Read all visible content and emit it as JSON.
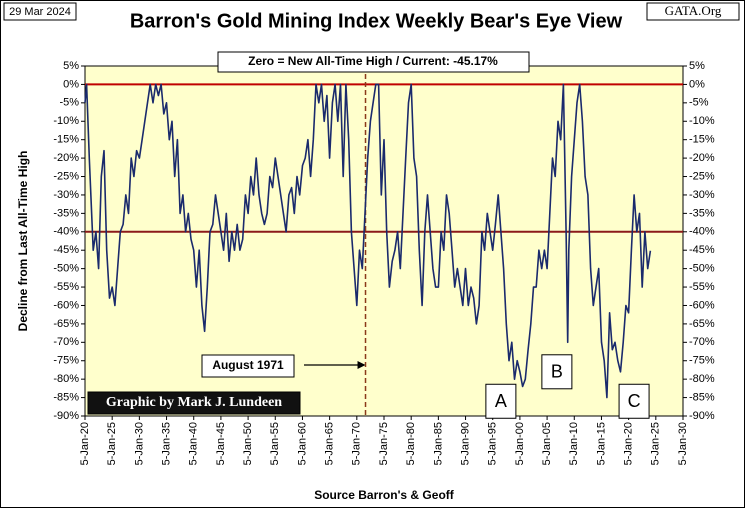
{
  "chart_data": {
    "type": "line",
    "title": "Barron's Gold Mining Index Weekly Bear's Eye View",
    "date_label": "29 Mar 2024",
    "source_site": "GATA.Org",
    "subtitle": "Zero = New All-Time High / Current:  -45.17%",
    "credit": "Graphic by Mark J. Lundeen",
    "y_label": "Decline from Last All-Time High",
    "x_label": "Source Barron's & Geoff",
    "vline": {
      "x": 1971.6,
      "label": "August 1971",
      "color": "#8b3a1a"
    },
    "reference_lines": [
      {
        "value": 0,
        "color": "#c00000"
      },
      {
        "value": -40,
        "color": "#8b1a1a"
      }
    ],
    "markers": [
      {
        "label": "A",
        "x": 1996.5,
        "y": -86
      },
      {
        "label": "B",
        "x": 2006.8,
        "y": -78
      },
      {
        "label": "C",
        "x": 2021,
        "y": -86
      }
    ],
    "background": "#ffffcc",
    "series": [
      {
        "name": "Barron's Gold Mining Index",
        "color": "#1a2a6c",
        "x": [
          1920,
          1920.3,
          1920.8,
          1921.5,
          1922,
          1922.5,
          1923,
          1923.5,
          1924,
          1924.5,
          1925,
          1925.5,
          1926,
          1926.5,
          1927,
          1927.5,
          1928,
          1928.5,
          1929,
          1929.5,
          1930,
          1930.5,
          1931,
          1931.5,
          1932,
          1932.5,
          1933,
          1933.5,
          1934,
          1934.5,
          1935,
          1935.5,
          1936,
          1936.5,
          1937,
          1937.5,
          1938,
          1938.5,
          1939,
          1939.5,
          1940,
          1940.5,
          1941,
          1941.5,
          1942,
          1942.5,
          1943,
          1943.5,
          1944,
          1944.5,
          1945,
          1945.5,
          1946,
          1946.5,
          1947,
          1947.5,
          1948,
          1948.5,
          1949,
          1949.5,
          1950,
          1950.5,
          1951,
          1951.5,
          1952,
          1952.5,
          1953,
          1953.5,
          1954,
          1954.5,
          1955,
          1955.5,
          1956,
          1956.5,
          1957,
          1957.5,
          1958,
          1958.5,
          1959,
          1959.5,
          1960,
          1960.5,
          1961,
          1961.5,
          1962,
          1962.5,
          1963,
          1963.5,
          1964,
          1964.5,
          1965,
          1965.5,
          1966,
          1966.5,
          1967,
          1967.5,
          1968,
          1968.5,
          1969,
          1969.5,
          1970,
          1970.5,
          1971,
          1971.5,
          1972,
          1972.5,
          1973,
          1973.5,
          1974,
          1974.5,
          1975,
          1975.5,
          1976,
          1976.5,
          1977,
          1977.5,
          1978,
          1978.5,
          1979,
          1979.5,
          1980,
          1980.5,
          1981,
          1981.5,
          1982,
          1982.5,
          1983,
          1983.5,
          1984,
          1984.5,
          1985,
          1985.5,
          1986,
          1986.5,
          1987,
          1987.5,
          1988,
          1988.5,
          1989,
          1989.5,
          1990,
          1990.5,
          1991,
          1991.5,
          1992,
          1992.5,
          1993,
          1993.5,
          1994,
          1994.5,
          1995,
          1995.5,
          1996,
          1996.5,
          1997,
          1997.5,
          1998,
          1998.5,
          1999,
          1999.5,
          2000,
          2000.5,
          2001,
          2001.5,
          2002,
          2002.5,
          2003,
          2003.5,
          2004,
          2004.5,
          2005,
          2005.5,
          2006,
          2006.5,
          2007,
          2007.5,
          2008,
          2008.5,
          2008.8,
          2009,
          2009.5,
          2010,
          2010.5,
          2011,
          2011.5,
          2012,
          2012.5,
          2013,
          2013.5,
          2014,
          2014.5,
          2015,
          2015.5,
          2016,
          2016.5,
          2017,
          2017.5,
          2018,
          2018.5,
          2019,
          2019.5,
          2020,
          2020.5,
          2021,
          2021.5,
          2022,
          2022.5,
          2023,
          2023.5,
          2024
        ],
        "values": [
          -5,
          0,
          -20,
          -45,
          -40,
          -50,
          -25,
          -18,
          -45,
          -58,
          -55,
          -60,
          -50,
          -40,
          -38,
          -30,
          -35,
          -20,
          -25,
          -18,
          -20,
          -15,
          -10,
          -5,
          0,
          -5,
          0,
          -3,
          0,
          -8,
          -5,
          -15,
          -10,
          -25,
          -15,
          -35,
          -30,
          -40,
          -35,
          -42,
          -45,
          -55,
          -45,
          -60,
          -67,
          -55,
          -40,
          -38,
          -30,
          -35,
          -40,
          -45,
          -35,
          -48,
          -40,
          -45,
          -38,
          -45,
          -42,
          -30,
          -35,
          -25,
          -30,
          -20,
          -30,
          -35,
          -38,
          -35,
          -25,
          -28,
          -20,
          -25,
          -30,
          -35,
          -40,
          -30,
          -28,
          -35,
          -25,
          -30,
          -22,
          -20,
          -15,
          -25,
          -15,
          0,
          -5,
          0,
          -10,
          -3,
          -20,
          -5,
          0,
          -10,
          0,
          -25,
          0,
          -15,
          -40,
          -50,
          -60,
          -45,
          -50,
          -35,
          -20,
          -10,
          -5,
          0,
          0,
          -30,
          -15,
          -40,
          -55,
          -48,
          -45,
          -40,
          -50,
          -35,
          -20,
          -5,
          0,
          -20,
          -25,
          -45,
          -60,
          -40,
          -30,
          -40,
          -50,
          -55,
          -55,
          -40,
          -45,
          -30,
          -35,
          -45,
          -55,
          -50,
          -55,
          -60,
          -50,
          -60,
          -55,
          -58,
          -65,
          -60,
          -40,
          -45,
          -35,
          -40,
          -45,
          -38,
          -30,
          -40,
          -50,
          -65,
          -75,
          -70,
          -80,
          -75,
          -78,
          -82,
          -80,
          -72,
          -65,
          -55,
          -55,
          -45,
          -50,
          -45,
          -50,
          -35,
          -20,
          -25,
          -10,
          -15,
          0,
          -40,
          -70,
          -45,
          -25,
          -15,
          -5,
          0,
          -10,
          -25,
          -30,
          -50,
          -60,
          -55,
          -50,
          -70,
          -75,
          -85,
          -62,
          -72,
          -70,
          -75,
          -78,
          -70,
          -60,
          -62,
          -45,
          -30,
          -40,
          -35,
          -55,
          -40,
          -50,
          -45.17
        ]
      }
    ],
    "xlim": [
      1920,
      2030
    ],
    "xticks": [
      {
        "value": 1920,
        "label": "5-Jan-20"
      },
      {
        "value": 1925,
        "label": "5-Jan-25"
      },
      {
        "value": 1930,
        "label": "5-Jan-30"
      },
      {
        "value": 1935,
        "label": "5-Jan-35"
      },
      {
        "value": 1940,
        "label": "5-Jan-40"
      },
      {
        "value": 1945,
        "label": "5-Jan-45"
      },
      {
        "value": 1950,
        "label": "5-Jan-50"
      },
      {
        "value": 1955,
        "label": "5-Jan-55"
      },
      {
        "value": 1960,
        "label": "5-Jan-60"
      },
      {
        "value": 1965,
        "label": "5-Jan-65"
      },
      {
        "value": 1970,
        "label": "5-Jan-70"
      },
      {
        "value": 1975,
        "label": "5-Jan-75"
      },
      {
        "value": 1980,
        "label": "5-Jan-80"
      },
      {
        "value": 1985,
        "label": "5-Jan-85"
      },
      {
        "value": 1990,
        "label": "5-Jan-90"
      },
      {
        "value": 1995,
        "label": "5-Jan-95"
      },
      {
        "value": 2000,
        "label": "5-Jan-00"
      },
      {
        "value": 2005,
        "label": "5-Jan-05"
      },
      {
        "value": 2010,
        "label": "5-Jan-10"
      },
      {
        "value": 2015,
        "label": "5-Jan-15"
      },
      {
        "value": 2020,
        "label": "5-Jan-20"
      },
      {
        "value": 2025,
        "label": "5-Jan-25"
      },
      {
        "value": 2030,
        "label": "5-Jan-30"
      }
    ],
    "ylim": [
      -90,
      5
    ],
    "yticks": [
      {
        "value": 5,
        "label": "5%"
      },
      {
        "value": 0,
        "label": "0%"
      },
      {
        "value": -5,
        "label": "-5%"
      },
      {
        "value": -10,
        "label": "-10%"
      },
      {
        "value": -15,
        "label": "-15%"
      },
      {
        "value": -20,
        "label": "-20%"
      },
      {
        "value": -25,
        "label": "-25%"
      },
      {
        "value": -30,
        "label": "-30%"
      },
      {
        "value": -35,
        "label": "-35%"
      },
      {
        "value": -40,
        "label": "-40%"
      },
      {
        "value": -45,
        "label": "-45%"
      },
      {
        "value": -50,
        "label": "-50%"
      },
      {
        "value": -55,
        "label": "-55%"
      },
      {
        "value": -60,
        "label": "-60%"
      },
      {
        "value": -65,
        "label": "-65%"
      },
      {
        "value": -70,
        "label": "-70%"
      },
      {
        "value": -75,
        "label": "-75%"
      },
      {
        "value": -80,
        "label": "-80%"
      },
      {
        "value": -85,
        "label": "-85%"
      },
      {
        "value": -90,
        "label": "-90%"
      }
    ]
  }
}
